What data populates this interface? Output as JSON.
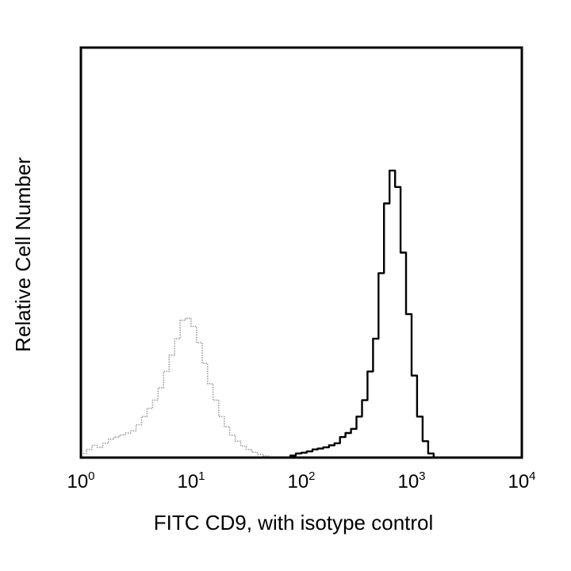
{
  "chart_data": {
    "type": "line",
    "title": "",
    "xlabel": "FITC CD9, with isotype control",
    "ylabel": "Relative Cell Number",
    "x_scale": "log",
    "xlim": [
      1,
      10000
    ],
    "ylim": [
      0,
      1
    ],
    "grid": false,
    "legend": "none",
    "x_ticks": [
      {
        "base": "10",
        "exp": "0",
        "value": 1
      },
      {
        "base": "10",
        "exp": "1",
        "value": 10
      },
      {
        "base": "10",
        "exp": "2",
        "value": 100
      },
      {
        "base": "10",
        "exp": "3",
        "value": 1000
      },
      {
        "base": "10",
        "exp": "4",
        "value": 10000
      }
    ],
    "series": [
      {
        "color": "#9a9a9a",
        "style": "dotted",
        "points": [
          [
            1.0,
            0.01
          ],
          [
            1.12,
            0.02
          ],
          [
            1.26,
            0.03
          ],
          [
            1.41,
            0.025
          ],
          [
            1.58,
            0.035
          ],
          [
            1.78,
            0.045
          ],
          [
            2.0,
            0.05
          ],
          [
            2.24,
            0.055
          ],
          [
            2.51,
            0.06
          ],
          [
            2.82,
            0.065
          ],
          [
            3.16,
            0.08
          ],
          [
            3.55,
            0.1
          ],
          [
            3.98,
            0.12
          ],
          [
            4.47,
            0.14
          ],
          [
            5.01,
            0.17
          ],
          [
            5.62,
            0.21
          ],
          [
            6.31,
            0.25
          ],
          [
            7.08,
            0.29
          ],
          [
            7.94,
            0.335
          ],
          [
            8.91,
            0.34
          ],
          [
            10.0,
            0.32
          ],
          [
            11.2,
            0.28
          ],
          [
            12.6,
            0.23
          ],
          [
            14.1,
            0.18
          ],
          [
            15.8,
            0.14
          ],
          [
            17.8,
            0.1
          ],
          [
            20.0,
            0.075
          ],
          [
            22.4,
            0.055
          ],
          [
            25.1,
            0.04
          ],
          [
            28.2,
            0.028
          ],
          [
            31.6,
            0.02
          ],
          [
            35.5,
            0.013
          ],
          [
            39.8,
            0.008
          ],
          [
            44.7,
            0.004
          ],
          [
            50.1,
            0.0
          ]
        ]
      },
      {
        "color": "#000000",
        "style": "solid",
        "points": [
          [
            70.8,
            0.0
          ],
          [
            79.4,
            0.005
          ],
          [
            89.1,
            0.01
          ],
          [
            100,
            0.012
          ],
          [
            112,
            0.015
          ],
          [
            126,
            0.02
          ],
          [
            141,
            0.022
          ],
          [
            158,
            0.025
          ],
          [
            178,
            0.03
          ],
          [
            200,
            0.035
          ],
          [
            224,
            0.05
          ],
          [
            251,
            0.06
          ],
          [
            282,
            0.07
          ],
          [
            316,
            0.1
          ],
          [
            355,
            0.14
          ],
          [
            398,
            0.21
          ],
          [
            447,
            0.29
          ],
          [
            501,
            0.45
          ],
          [
            562,
            0.62
          ],
          [
            631,
            0.7
          ],
          [
            708,
            0.66
          ],
          [
            794,
            0.5
          ],
          [
            891,
            0.35
          ],
          [
            1000,
            0.2
          ],
          [
            1122,
            0.1
          ],
          [
            1259,
            0.04
          ],
          [
            1413,
            0.01
          ],
          [
            1585,
            0.0
          ]
        ]
      }
    ]
  }
}
